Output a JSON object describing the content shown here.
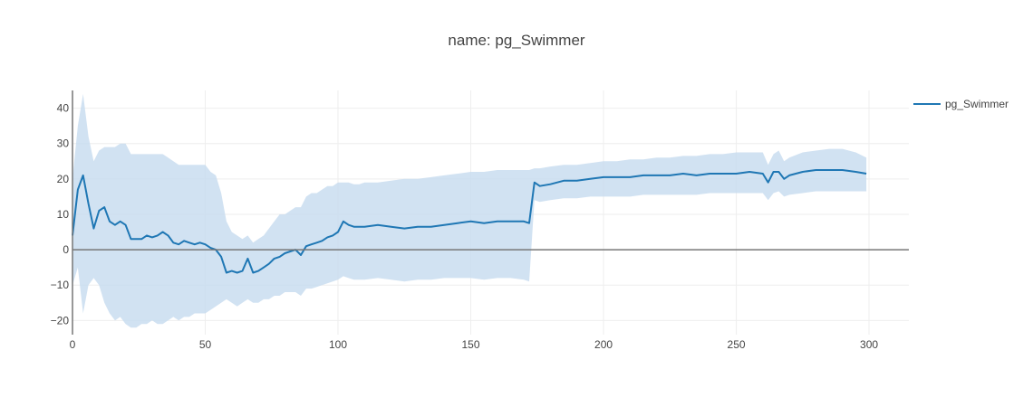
{
  "chart_data": {
    "type": "line",
    "title": "name: pg_Swimmer",
    "xlabel": "",
    "ylabel": "",
    "xlim": [
      0,
      315
    ],
    "ylim": [
      -24,
      45
    ],
    "xticks": [
      0,
      50,
      100,
      150,
      200,
      250,
      300
    ],
    "yticks": [
      -20,
      -10,
      0,
      10,
      20,
      30,
      40
    ],
    "grid": true,
    "zero_line": true,
    "legend": {
      "position": "top-right",
      "entries": [
        "pg_Swimmer"
      ]
    },
    "colors": {
      "line": "#1f77b4",
      "band": "#c6dbef"
    },
    "series": [
      {
        "name": "pg_Swimmer",
        "x": [
          0,
          2,
          4,
          6,
          8,
          10,
          12,
          14,
          16,
          18,
          20,
          22,
          24,
          26,
          28,
          30,
          32,
          34,
          36,
          38,
          40,
          42,
          44,
          46,
          48,
          50,
          52,
          54,
          56,
          58,
          60,
          62,
          64,
          66,
          68,
          70,
          72,
          74,
          76,
          78,
          80,
          82,
          84,
          86,
          88,
          90,
          92,
          94,
          96,
          98,
          100,
          102,
          104,
          106,
          108,
          110,
          115,
          120,
          125,
          130,
          135,
          140,
          145,
          150,
          155,
          160,
          165,
          170,
          172,
          174,
          176,
          180,
          185,
          190,
          195,
          200,
          205,
          210,
          215,
          220,
          225,
          230,
          235,
          240,
          245,
          250,
          255,
          260,
          262,
          264,
          266,
          268,
          270,
          275,
          280,
          285,
          290,
          295,
          299
        ],
        "y": [
          4,
          17,
          21,
          13,
          6,
          11,
          12,
          8,
          7,
          8,
          7,
          3,
          3,
          3,
          4,
          3.5,
          4,
          5,
          4,
          2,
          1.5,
          2.5,
          2,
          1.5,
          2,
          1.5,
          0.5,
          0,
          -2,
          -6.5,
          -6,
          -6.5,
          -6,
          -2.5,
          -6.5,
          -6,
          -5,
          -4,
          -2.5,
          -2,
          -1,
          -0.5,
          0,
          -1.5,
          1,
          1.5,
          2,
          2.5,
          3.5,
          4,
          5,
          8,
          7,
          6.5,
          6.5,
          6.5,
          7,
          6.5,
          6,
          6.5,
          6.5,
          7,
          7.5,
          8,
          7.5,
          8,
          8,
          8,
          7.5,
          19,
          18,
          18.5,
          19.5,
          19.5,
          20,
          20.5,
          20.5,
          20.5,
          21,
          21,
          21,
          21.5,
          21,
          21.5,
          21.5,
          21.5,
          22,
          21.5,
          19,
          22,
          22,
          20,
          21,
          22,
          22.5,
          22.5,
          22.5,
          22,
          21.5
        ],
        "upper": [
          20,
          35,
          44,
          32,
          25,
          28,
          29,
          29,
          29,
          30,
          30,
          27,
          27,
          27,
          27,
          27,
          27,
          27,
          26,
          25,
          24,
          24,
          24,
          24,
          24,
          24,
          22,
          21,
          16,
          8,
          5,
          4,
          3,
          4,
          2,
          3,
          4,
          6,
          8,
          10,
          10,
          11,
          12,
          12,
          15,
          16,
          16,
          17,
          18,
          18,
          19,
          19,
          19,
          18.5,
          18.5,
          19,
          19,
          19.5,
          20,
          20,
          20.5,
          21,
          21.5,
          22,
          22,
          22.5,
          22.5,
          22.5,
          22.5,
          23,
          23,
          23.5,
          24,
          24,
          24.5,
          25,
          25,
          25.5,
          25.5,
          26,
          26,
          26.5,
          26.5,
          27,
          27,
          27.5,
          27.5,
          27.5,
          24,
          27,
          28,
          25,
          26,
          27.5,
          28,
          28.5,
          28.5,
          27.5,
          26
        ],
        "lower": [
          -10,
          -5,
          -18,
          -10,
          -8,
          -10,
          -15,
          -18,
          -20,
          -19,
          -21,
          -22,
          -22,
          -21,
          -21,
          -20,
          -21,
          -21,
          -20,
          -19,
          -20,
          -19,
          -19,
          -18,
          -18,
          -18,
          -17,
          -16,
          -15,
          -14,
          -15,
          -16,
          -15,
          -14,
          -15,
          -15,
          -14,
          -14,
          -13,
          -13,
          -12,
          -12,
          -12,
          -13,
          -11,
          -11,
          -10.5,
          -10,
          -9.5,
          -9,
          -8.5,
          -7.5,
          -8,
          -8.5,
          -8.5,
          -8.5,
          -8,
          -8.5,
          -9,
          -8.5,
          -8.5,
          -8,
          -8,
          -8,
          -8.5,
          -8,
          -8,
          -8.5,
          -9,
          14,
          13.5,
          14,
          14.5,
          14.5,
          15,
          15,
          15,
          15,
          15.5,
          15.5,
          15.5,
          15.5,
          15.5,
          16,
          16,
          16,
          16,
          16,
          14,
          16,
          16.5,
          15,
          15.5,
          16,
          16.5,
          16.5,
          16.5,
          16.5,
          16.5
        ]
      }
    ]
  }
}
